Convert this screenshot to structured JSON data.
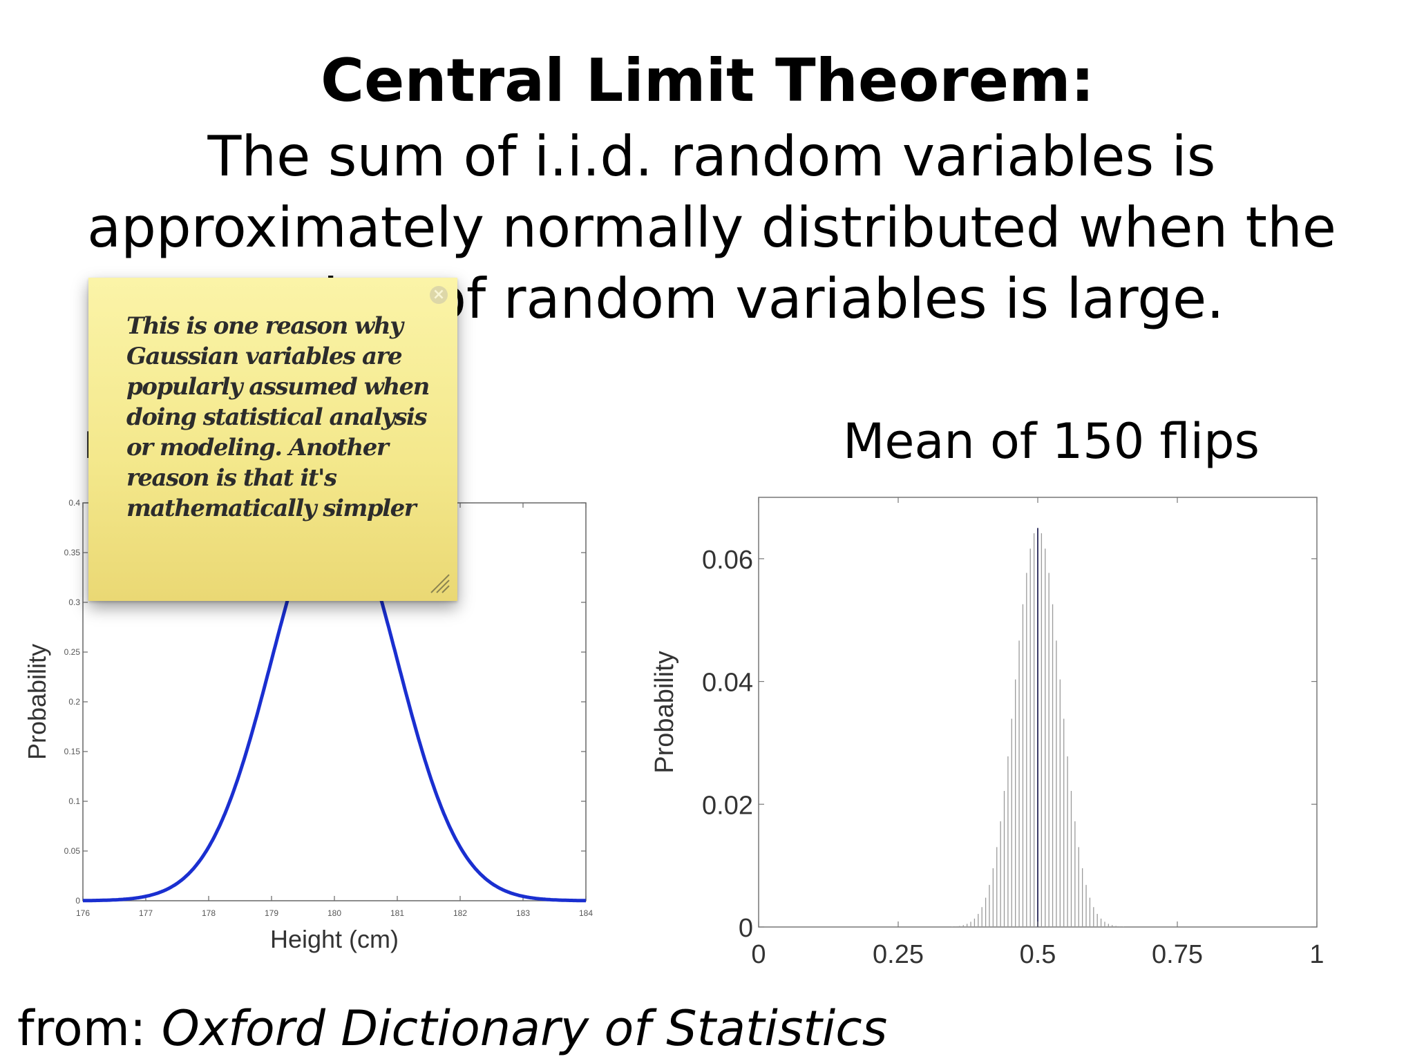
{
  "slide": {
    "title": "Central Limit Theorem:",
    "body": "The sum of i.i.d. random variables is approximately normally distributed when the number of random variables is large.",
    "source_prefix": "from: ",
    "source_title": "Oxford Dictionary of Statistics"
  },
  "sticky_note": {
    "text": "This is one reason why Gaussian variables are popularly assumed when doing statistical analysis or modeling.  Another reason is that it's mathematically simpler",
    "close_icon": "close-icon",
    "resize_icon": "resize-grip-icon"
  },
  "chart_data": [
    {
      "type": "line",
      "title": "",
      "title_visible_fragment": "r",
      "xlabel": "Height (cm)",
      "ylabel": "Probability",
      "xlim": [
        176,
        184
      ],
      "ylim": [
        0,
        0.4
      ],
      "xticks": [
        176,
        177,
        178,
        179,
        180,
        181,
        182,
        183,
        184
      ],
      "yticks": [
        0,
        0.05,
        0.1,
        0.15,
        0.2,
        0.25,
        0.3,
        0.35,
        0.4
      ],
      "xtick_labels": [
        "176",
        "177",
        "178",
        "179",
        "180",
        "181",
        "182",
        "183",
        "184"
      ],
      "ytick_labels": [
        "0",
        "0.05",
        "0.1",
        "0.15",
        "0.2",
        "0.25",
        "0.3",
        "0.35",
        "0.4"
      ],
      "series": [
        {
          "color": "#1a2fd0",
          "curve": "normal",
          "mean": 180,
          "sd": 1
        }
      ],
      "grid": false
    },
    {
      "type": "bar",
      "title": "Mean of 150 flips",
      "xlabel": "",
      "ylabel": "Probability",
      "xlim": [
        0,
        1
      ],
      "ylim": [
        0,
        0.07
      ],
      "xticks": [
        0,
        0.25,
        0.5,
        0.75,
        1
      ],
      "yticks": [
        0,
        0.02,
        0.04,
        0.06
      ],
      "xtick_labels": [
        "0",
        "0.25",
        "0.5",
        "0.75",
        "1"
      ],
      "ytick_labels": [
        "0",
        "0.02",
        "0.04",
        "0.06"
      ],
      "bars": {
        "distribution": "binomial",
        "n": 150,
        "p": 0.5,
        "peak_value": 0.065,
        "color": "#9a9a9a",
        "center_color": "#3a3a66"
      },
      "grid": false
    }
  ]
}
